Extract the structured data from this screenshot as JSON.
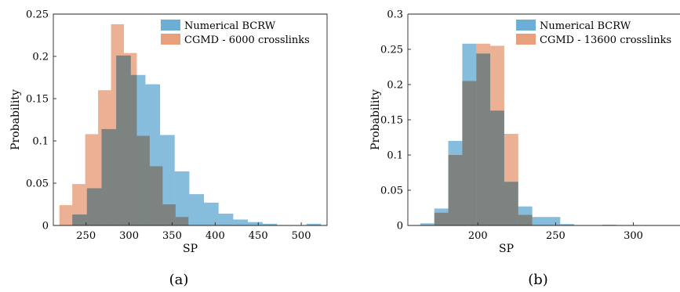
{
  "chart_data": [
    {
      "type": "bar",
      "panel_label": "(a)",
      "xlabel": "SP",
      "ylabel": "Probability",
      "xlim": [
        212,
        530
      ],
      "ylim": [
        0,
        0.25
      ],
      "x_ticks": [
        250,
        300,
        350,
        400,
        450,
        500
      ],
      "y_ticks": [
        0,
        0.05,
        0.1,
        0.15,
        0.2,
        0.25
      ],
      "x_tick_labels": [
        "250",
        "300",
        "350",
        "400",
        "450",
        "500"
      ],
      "y_tick_labels": [
        "0",
        "0.05",
        "0.1",
        "0.15",
        "0.2",
        "0.25"
      ],
      "legend_position": "top-right",
      "grid": false,
      "series": [
        {
          "name": "Numerical BCRW",
          "color": "#6baed6",
          "bin_edges": [
            234,
            251,
            268,
            285,
            302,
            319,
            336,
            353,
            370,
            387,
            404,
            421,
            438,
            455,
            472,
            489,
            506,
            523
          ],
          "values": [
            0.013,
            0.044,
            0.114,
            0.201,
            0.178,
            0.167,
            0.107,
            0.064,
            0.037,
            0.027,
            0.014,
            0.007,
            0.004,
            0.002,
            0.0005,
            0.0,
            0.002
          ]
        },
        {
          "name": "CGMD - 6000 crosslinks",
          "color": "#e8a07c",
          "bin_edges": [
            219,
            234,
            249,
            264,
            279,
            294,
            309,
            324,
            339,
            354,
            369
          ],
          "values": [
            0.024,
            0.049,
            0.108,
            0.16,
            0.238,
            0.204,
            0.106,
            0.07,
            0.025,
            0.01
          ]
        }
      ]
    },
    {
      "type": "bar",
      "panel_label": "(b)",
      "xlabel": "SP",
      "ylabel": "Probability",
      "xlim": [
        155,
        330
      ],
      "ylim": [
        0,
        0.3
      ],
      "x_ticks": [
        200,
        250,
        300
      ],
      "y_ticks": [
        0,
        0.05,
        0.1,
        0.15,
        0.2,
        0.25,
        0.3
      ],
      "x_tick_labels": [
        "200",
        "250",
        "300"
      ],
      "y_tick_labels": [
        "0",
        "0.05",
        "0.1",
        "0.15",
        "0.2",
        "0.25",
        "0.3"
      ],
      "legend_position": "top-right",
      "grid": false,
      "series": [
        {
          "name": "Numerical BCRW",
          "color": "#6baed6",
          "bin_edges": [
            163,
            172,
            181,
            190,
            199,
            208,
            217,
            226,
            235,
            244,
            253,
            262,
            271,
            280,
            289
          ],
          "values": [
            0.003,
            0.024,
            0.12,
            0.258,
            0.244,
            0.163,
            0.062,
            0.027,
            0.012,
            0.012,
            0.002,
            0.0,
            0.0,
            0.001
          ]
        },
        {
          "name": "CGMD - 13600 crosslinks",
          "color": "#e8a07c",
          "bin_edges": [
            172,
            181,
            190,
            199,
            208,
            217,
            226,
            235
          ],
          "values": [
            0.018,
            0.1,
            0.205,
            0.258,
            0.255,
            0.13,
            0.015
          ]
        }
      ]
    }
  ]
}
